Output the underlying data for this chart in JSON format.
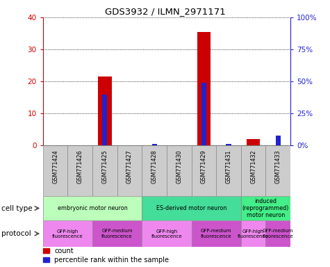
{
  "title": "GDS3932 / ILMN_2971171",
  "samples": [
    "GSM771424",
    "GSM771426",
    "GSM771425",
    "GSM771427",
    "GSM771428",
    "GSM771430",
    "GSM771429",
    "GSM771431",
    "GSM771432",
    "GSM771433"
  ],
  "count_values": [
    0,
    0,
    21.5,
    0,
    0,
    0,
    35.5,
    0,
    2.0,
    0
  ],
  "percentile_values": [
    0,
    0,
    40,
    0,
    1.0,
    0,
    49,
    1.0,
    0,
    8.0
  ],
  "ylim_left": [
    0,
    40
  ],
  "ylim_right": [
    0,
    100
  ],
  "yticks_left": [
    0,
    10,
    20,
    30,
    40
  ],
  "yticks_right": [
    0,
    25,
    50,
    75,
    100
  ],
  "ytick_labels_left": [
    "0",
    "10",
    "20",
    "30",
    "40"
  ],
  "ytick_labels_right": [
    "0%",
    "25%",
    "50%",
    "75%",
    "100%"
  ],
  "bar_color_count": "#cc0000",
  "bar_color_percentile": "#2222cc",
  "cell_type_groups": [
    {
      "label": "embryonic motor neuron",
      "start": 0,
      "end": 4,
      "color": "#bbffbb"
    },
    {
      "label": "ES-derived motor neuron",
      "start": 4,
      "end": 8,
      "color": "#44dd99"
    },
    {
      "label": "induced\n(reprogrammed)\nmotor neuron",
      "start": 8,
      "end": 10,
      "color": "#44ee88"
    }
  ],
  "protocol_groups": [
    {
      "label": "GFP-high\nfluorescence",
      "start": 0,
      "end": 2,
      "color": "#ee88ee"
    },
    {
      "label": "GFP-medium\nfluorescence",
      "start": 2,
      "end": 4,
      "color": "#cc55cc"
    },
    {
      "label": "GFP-high\nfluorescence",
      "start": 4,
      "end": 6,
      "color": "#ee88ee"
    },
    {
      "label": "GFP-medium\nfluorescence",
      "start": 6,
      "end": 8,
      "color": "#cc55cc"
    },
    {
      "label": "GFP-high\nfluorescence",
      "start": 8,
      "end": 9,
      "color": "#ee88ee"
    },
    {
      "label": "GFP-medium\nfluorescence",
      "start": 9,
      "end": 10,
      "color": "#cc55cc"
    }
  ],
  "legend_count_label": "count",
  "legend_percentile_label": "percentile rank within the sample",
  "cell_type_label": "cell type",
  "protocol_label": "protocol",
  "sample_box_color": "#cccccc",
  "fig_bg": "white"
}
